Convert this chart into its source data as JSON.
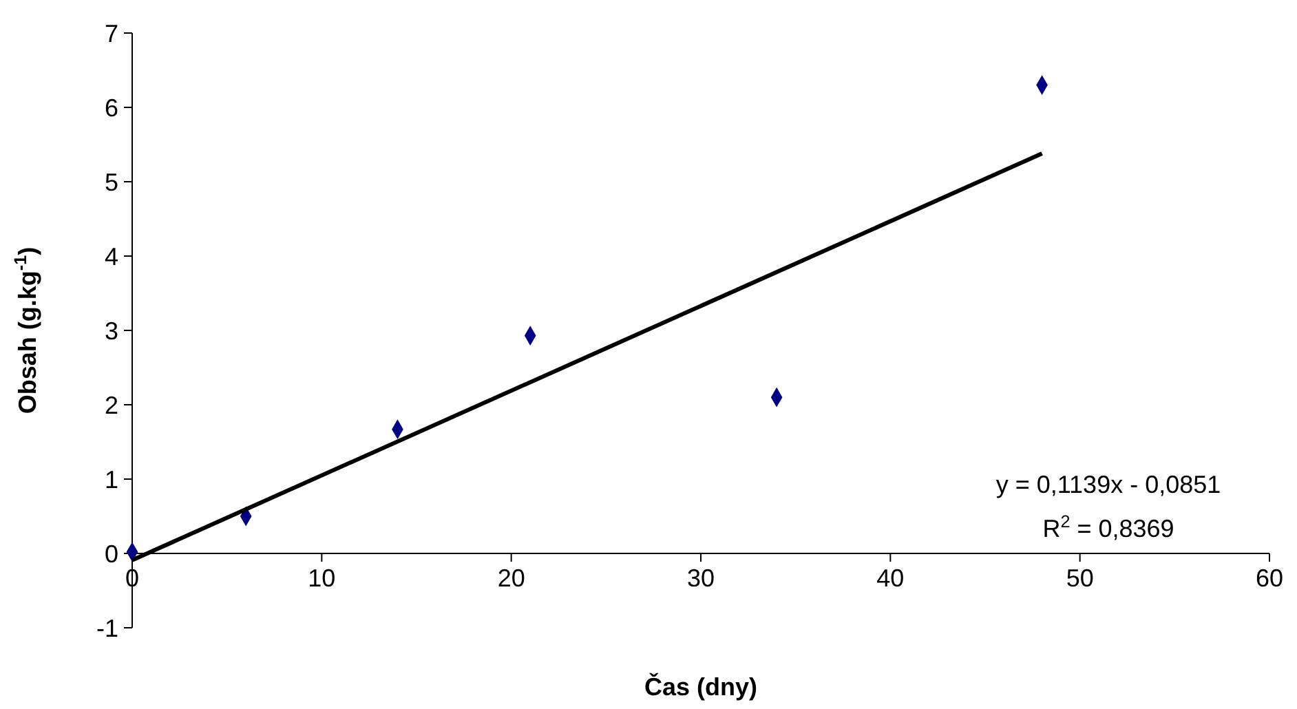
{
  "chart_data": {
    "type": "scatter",
    "xlabel": "Čas (dny)",
    "ylabel": "Obsah (g.kg$^{-1}$)",
    "xlim": [
      0,
      60
    ],
    "xticks": [
      0,
      10,
      20,
      30,
      40,
      50,
      60
    ],
    "ylim": [
      -1,
      7
    ],
    "yticks": [
      -1,
      0,
      1,
      2,
      3,
      4,
      5,
      6,
      7
    ],
    "grid": false,
    "series": [
      {
        "color": "#000080",
        "marker": "diamond",
        "x": [
          0,
          6,
          14,
          21,
          34,
          48
        ],
        "values": [
          0.02,
          0.5,
          1.67,
          2.93,
          2.1,
          6.3
        ]
      },
      {
        "type": "line",
        "color": "#000000",
        "marker": "none",
        "line_style": "solid",
        "x": [
          0,
          48
        ],
        "values": [
          -0.09,
          5.38
        ]
      }
    ],
    "annotations": [
      "y = 0,1139x - 0,0851",
      "R$^{2}$ = 0,8369"
    ]
  }
}
